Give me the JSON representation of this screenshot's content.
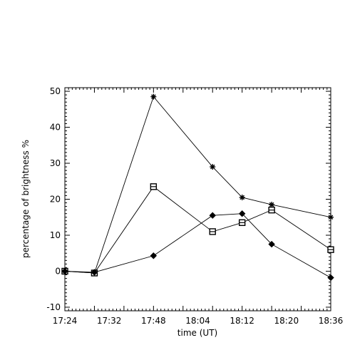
{
  "chart_data": {
    "type": "line",
    "title": "",
    "xlabel": "time (UT)",
    "ylabel": "percentage of brightness %",
    "x": [
      "17:24",
      "17:32",
      "17:48",
      "18:04",
      "18:12",
      "18:20",
      "18:36"
    ],
    "x_minutes": [
      0,
      8,
      24,
      40,
      48,
      56,
      72
    ],
    "xlim_minutes": [
      0,
      72
    ],
    "ylim": [
      -11,
      51
    ],
    "yticks": [
      -10,
      0,
      10,
      20,
      30,
      40,
      50
    ],
    "ytick_labels": [
      "-10",
      "0",
      "10",
      "20",
      "30",
      "40",
      "50"
    ],
    "grid": false,
    "legend": "none",
    "series": [
      {
        "marker": "asterisk",
        "points": [
          {
            "x": 0,
            "y": 0
          },
          {
            "x": 8,
            "y": -0.5
          },
          {
            "x": 24,
            "y": 48.5
          },
          {
            "x": 40,
            "y": 29
          },
          {
            "x": 48,
            "y": 20.5
          },
          {
            "x": 56,
            "y": 18.5
          },
          {
            "x": 72,
            "y": 15
          }
        ]
      },
      {
        "marker": "square",
        "points": [
          {
            "x": 0,
            "y": 0
          },
          {
            "x": 8,
            "y": -0.5
          },
          {
            "x": 24,
            "y": 23.5
          },
          {
            "x": 40,
            "y": 11
          },
          {
            "x": 48,
            "y": 13.5
          },
          {
            "x": 56,
            "y": 17
          },
          {
            "x": 72,
            "y": 6
          }
        ]
      },
      {
        "marker": "diamond",
        "points": [
          {
            "x": 0,
            "y": 0
          },
          {
            "x": 8,
            "y": -0.3
          },
          {
            "x": 24,
            "y": 4.3
          },
          {
            "x": 40,
            "y": 15.5
          },
          {
            "x": 48,
            "y": 16
          },
          {
            "x": 56,
            "y": 7.5
          },
          {
            "x": 72,
            "y": -1.8
          }
        ]
      }
    ]
  }
}
